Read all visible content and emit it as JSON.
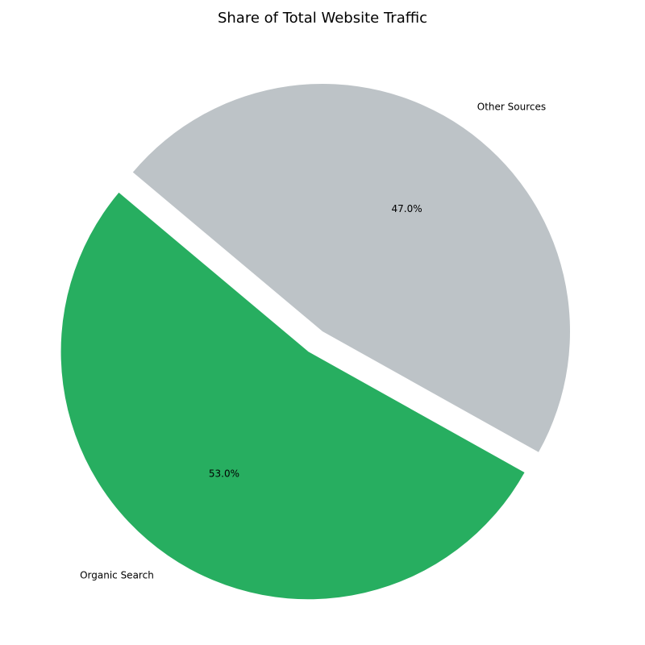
{
  "chart_data": {
    "type": "pie",
    "title": "Share of Total Website Traffic",
    "categories": [
      "Organic Search",
      "Other Sources"
    ],
    "values": [
      53,
      47
    ],
    "value_labels": [
      "53.0%",
      "47.0%"
    ],
    "colors": [
      "#27ae60",
      "#bdc3c7"
    ],
    "explode": [
      0.1,
      0
    ],
    "startangle": 140
  }
}
